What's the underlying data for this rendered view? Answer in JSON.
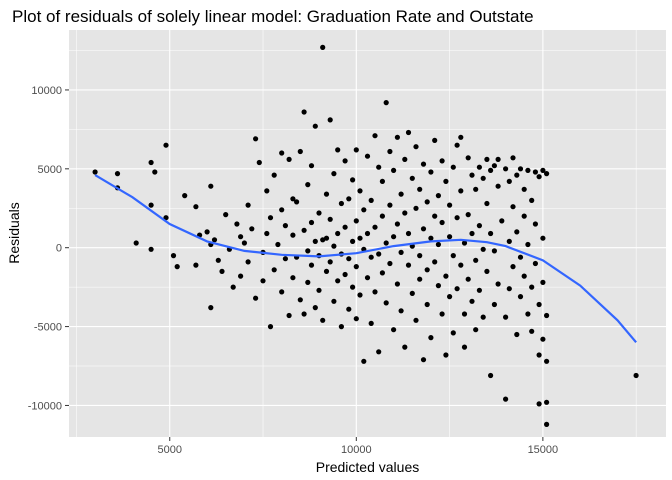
{
  "chart_data": {
    "type": "scatter",
    "title": "Plot of residuals of solely linear model: Graduation Rate and Outstate",
    "xlabel": "Predicted values",
    "ylabel": "Residuals",
    "xlim": [
      2300,
      18300
    ],
    "ylim": [
      -12000,
      13800
    ],
    "x_ticks": [
      5000,
      10000,
      15000
    ],
    "x_tick_labels": [
      "5000",
      "10000",
      "15000"
    ],
    "y_ticks": [
      -10000,
      -5000,
      0,
      5000,
      10000
    ],
    "y_tick_labels": [
      "-10000",
      "-5000",
      "0",
      "5000",
      "10000"
    ],
    "grid": true,
    "colors": {
      "panel_background": "#e5e5e5",
      "grid_line": "#ffffff",
      "points": "#000000",
      "smooth_line": "#3366ff"
    },
    "points": [
      [
        3000,
        4800
      ],
      [
        3600,
        4700
      ],
      [
        3600,
        3800
      ],
      [
        4100,
        300
      ],
      [
        4500,
        5400
      ],
      [
        4500,
        2700
      ],
      [
        4600,
        4800
      ],
      [
        4500,
        -100
      ],
      [
        4900,
        6500
      ],
      [
        4900,
        1900
      ],
      [
        5100,
        -500
      ],
      [
        5200,
        -1200
      ],
      [
        5400,
        3300
      ],
      [
        5700,
        2600
      ],
      [
        5700,
        -1100
      ],
      [
        5800,
        800
      ],
      [
        6000,
        1000
      ],
      [
        6100,
        3900
      ],
      [
        6100,
        200
      ],
      [
        6100,
        -3800
      ],
      [
        6200,
        500
      ],
      [
        6300,
        -800
      ],
      [
        6400,
        -1500
      ],
      [
        6500,
        2100
      ],
      [
        6600,
        -100
      ],
      [
        6700,
        -2500
      ],
      [
        6800,
        1500
      ],
      [
        6900,
        700
      ],
      [
        6900,
        -1800
      ],
      [
        7000,
        300
      ],
      [
        7100,
        2700
      ],
      [
        7100,
        -900
      ],
      [
        7200,
        1200
      ],
      [
        7300,
        -3200
      ],
      [
        7300,
        6900
      ],
      [
        7400,
        5400
      ],
      [
        7500,
        -300
      ],
      [
        7500,
        -2100
      ],
      [
        7600,
        3600
      ],
      [
        7600,
        900
      ],
      [
        7700,
        -5000
      ],
      [
        7700,
        1900
      ],
      [
        7800,
        -1400
      ],
      [
        7800,
        4600
      ],
      [
        7900,
        200
      ],
      [
        8000,
        6000
      ],
      [
        8000,
        -2800
      ],
      [
        8000,
        2400
      ],
      [
        8100,
        -700
      ],
      [
        8100,
        1400
      ],
      [
        8200,
        5600
      ],
      [
        8200,
        -4300
      ],
      [
        8300,
        800
      ],
      [
        8300,
        -1900
      ],
      [
        8300,
        3100
      ],
      [
        8400,
        -600
      ],
      [
        8400,
        2900
      ],
      [
        8500,
        -3300
      ],
      [
        8500,
        6100
      ],
      [
        8600,
        1100
      ],
      [
        8600,
        -4200
      ],
      [
        8600,
        8600
      ],
      [
        8700,
        -200
      ],
      [
        8700,
        4000
      ],
      [
        8700,
        -2200
      ],
      [
        8800,
        1600
      ],
      [
        8800,
        -1100
      ],
      [
        8800,
        5200
      ],
      [
        8900,
        400
      ],
      [
        8900,
        -3800
      ],
      [
        8900,
        7700
      ],
      [
        9000,
        -500
      ],
      [
        9000,
        2200
      ],
      [
        9000,
        -2700
      ],
      [
        9100,
        12700
      ],
      [
        9100,
        500
      ],
      [
        9100,
        -4600
      ],
      [
        9200,
        3400
      ],
      [
        9200,
        -1500
      ],
      [
        9200,
        600
      ],
      [
        9300,
        8100
      ],
      [
        9300,
        -900
      ],
      [
        9300,
        1800
      ],
      [
        9400,
        -3400
      ],
      [
        9400,
        4700
      ],
      [
        9400,
        100
      ],
      [
        9500,
        -2100
      ],
      [
        9500,
        6200
      ],
      [
        9500,
        900
      ],
      [
        9600,
        -400
      ],
      [
        9600,
        -5000
      ],
      [
        9600,
        2800
      ],
      [
        9700,
        1300
      ],
      [
        9700,
        -1700
      ],
      [
        9700,
        5500
      ],
      [
        9800,
        -700
      ],
      [
        9800,
        3100
      ],
      [
        9800,
        -3900
      ],
      [
        9900,
        400
      ],
      [
        9900,
        -2500
      ],
      [
        9900,
        4300
      ],
      [
        10000,
        -4500
      ],
      [
        10000,
        6200
      ],
      [
        10000,
        1700
      ],
      [
        10000,
        -1200
      ],
      [
        10100,
        600
      ],
      [
        10100,
        3600
      ],
      [
        10100,
        -3000
      ],
      [
        10200,
        -7200
      ],
      [
        10200,
        -100
      ],
      [
        10200,
        2400
      ],
      [
        10300,
        5800
      ],
      [
        10300,
        -1900
      ],
      [
        10300,
        900
      ],
      [
        10400,
        -4800
      ],
      [
        10400,
        3000
      ],
      [
        10400,
        -600
      ],
      [
        10500,
        7100
      ],
      [
        10500,
        1300
      ],
      [
        10500,
        -2800
      ],
      [
        10600,
        5100
      ],
      [
        10600,
        -400
      ],
      [
        10600,
        -6600
      ],
      [
        10700,
        2000
      ],
      [
        10700,
        -1600
      ],
      [
        10700,
        4200
      ],
      [
        10800,
        9200
      ],
      [
        10800,
        300
      ],
      [
        10800,
        -3500
      ],
      [
        10900,
        6100
      ],
      [
        10900,
        -1000
      ],
      [
        10900,
        2700
      ],
      [
        11000,
        -5200
      ],
      [
        11000,
        4900
      ],
      [
        11000,
        700
      ],
      [
        11100,
        -2300
      ],
      [
        11100,
        1500
      ],
      [
        11100,
        7000
      ],
      [
        11200,
        -300
      ],
      [
        11200,
        -4000
      ],
      [
        11200,
        3400
      ],
      [
        11300,
        2200
      ],
      [
        11300,
        -6300
      ],
      [
        11300,
        5600
      ],
      [
        11400,
        -1100
      ],
      [
        11400,
        900
      ],
      [
        11400,
        7300
      ],
      [
        11500,
        -2900
      ],
      [
        11500,
        4400
      ],
      [
        11500,
        100
      ],
      [
        11600,
        6400
      ],
      [
        11600,
        -4600
      ],
      [
        11600,
        2500
      ],
      [
        11700,
        -500
      ],
      [
        11700,
        -2000
      ],
      [
        11700,
        3700
      ],
      [
        11800,
        1200
      ],
      [
        11800,
        -7100
      ],
      [
        11800,
        5300
      ],
      [
        11900,
        -1400
      ],
      [
        11900,
        2900
      ],
      [
        11900,
        -3600
      ],
      [
        12000,
        600
      ],
      [
        12000,
        4800
      ],
      [
        12000,
        -5700
      ],
      [
        12100,
        -900
      ],
      [
        12100,
        2000
      ],
      [
        12100,
        6800
      ],
      [
        12200,
        -2400
      ],
      [
        12200,
        3300
      ],
      [
        12200,
        200
      ],
      [
        12300,
        5500
      ],
      [
        12300,
        -4200
      ],
      [
        12300,
        1600
      ],
      [
        12400,
        -1800
      ],
      [
        12400,
        4200
      ],
      [
        12400,
        -6800
      ],
      [
        12500,
        700
      ],
      [
        12500,
        2700
      ],
      [
        12500,
        -3100
      ],
      [
        12600,
        5100
      ],
      [
        12600,
        -500
      ],
      [
        12600,
        -5400
      ],
      [
        12700,
        1900
      ],
      [
        12700,
        6500
      ],
      [
        12700,
        -2600
      ],
      [
        12800,
        7000
      ],
      [
        12800,
        -1100
      ],
      [
        12800,
        3600
      ],
      [
        12900,
        -4200
      ],
      [
        12900,
        300
      ],
      [
        12900,
        -6300
      ],
      [
        13000,
        5700
      ],
      [
        13000,
        2100
      ],
      [
        13000,
        -2000
      ],
      [
        13100,
        4600
      ],
      [
        13100,
        -3400
      ],
      [
        13100,
        900
      ],
      [
        13200,
        -800
      ],
      [
        13200,
        3700
      ],
      [
        13200,
        -5200
      ],
      [
        13300,
        5100
      ],
      [
        13300,
        1400
      ],
      [
        13300,
        -2700
      ],
      [
        13400,
        4400
      ],
      [
        13400,
        -4400
      ],
      [
        13400,
        -100
      ],
      [
        13500,
        5600
      ],
      [
        13500,
        2800
      ],
      [
        13500,
        -1500
      ],
      [
        13600,
        -8100
      ],
      [
        13600,
        4900
      ],
      [
        13600,
        900
      ],
      [
        13700,
        5200
      ],
      [
        13700,
        -3600
      ],
      [
        13700,
        -200
      ],
      [
        13800,
        3900
      ],
      [
        13800,
        -2300
      ],
      [
        13800,
        5600
      ],
      [
        13900,
        1700
      ],
      [
        14000,
        -9600
      ],
      [
        14000,
        -4400
      ],
      [
        14000,
        5000
      ],
      [
        14100,
        400
      ],
      [
        14100,
        -2600
      ],
      [
        14100,
        4200
      ],
      [
        14200,
        5700
      ],
      [
        14200,
        -1200
      ],
      [
        14200,
        2600
      ],
      [
        14300,
        -5500
      ],
      [
        14300,
        4600
      ],
      [
        14300,
        1000
      ],
      [
        14400,
        -3100
      ],
      [
        14400,
        -600
      ],
      [
        14400,
        5000
      ],
      [
        14500,
        3700
      ],
      [
        14500,
        -1800
      ],
      [
        14500,
        2000
      ],
      [
        14600,
        -4200
      ],
      [
        14600,
        4900
      ],
      [
        14600,
        200
      ],
      [
        14700,
        -2500
      ],
      [
        14700,
        3000
      ],
      [
        14700,
        -5300
      ],
      [
        14800,
        4800
      ],
      [
        14800,
        -1000
      ],
      [
        14800,
        1500
      ],
      [
        14900,
        -3600
      ],
      [
        14900,
        -6800
      ],
      [
        14900,
        4500
      ],
      [
        14900,
        -9900
      ],
      [
        15000,
        4900
      ],
      [
        15000,
        -2200
      ],
      [
        15000,
        600
      ],
      [
        15000,
        -5800
      ],
      [
        15100,
        -9800
      ],
      [
        15100,
        -11200
      ],
      [
        15100,
        -4300
      ],
      [
        15100,
        4700
      ],
      [
        15100,
        -7200
      ],
      [
        17500,
        -8100
      ]
    ],
    "smooth_curve": [
      [
        3000,
        4600
      ],
      [
        4000,
        3200
      ],
      [
        5000,
        1500
      ],
      [
        6000,
        400
      ],
      [
        7000,
        -200
      ],
      [
        8000,
        -450
      ],
      [
        9000,
        -550
      ],
      [
        10000,
        -350
      ],
      [
        11000,
        100
      ],
      [
        12000,
        400
      ],
      [
        12800,
        500
      ],
      [
        13500,
        350
      ],
      [
        14000,
        100
      ],
      [
        15000,
        -800
      ],
      [
        16000,
        -2400
      ],
      [
        17000,
        -4600
      ],
      [
        17500,
        -6000
      ]
    ]
  }
}
